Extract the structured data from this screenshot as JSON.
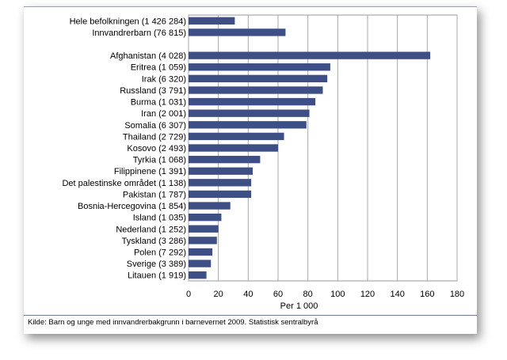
{
  "chart_data": {
    "type": "bar",
    "orientation": "horizontal",
    "categories": [
      "Hele befolkningen (1 426 284)",
      "Innvandrerbarn (76 815)",
      "",
      "Afghanistan (4 028)",
      "Eritrea (1 059)",
      "Irak (6 320)",
      "Russland (3 791)",
      "Burma (1 031)",
      "Iran (2 001)",
      "Somalia (6 307)",
      "Thailand (2 729)",
      "Kosovo (2 493)",
      "Tyrkia (1 068)",
      "Filippinene (1 391)",
      "Det palestinske området (1 138)",
      "Pakistan (1 787)",
      "Bosnia-Hercegovina (1 854)",
      "Island (1 035)",
      "Nederland (1 252)",
      "Tyskland (3 286)",
      "Polen (7 292)",
      "Sverige (3 389)",
      "Litauen (1 919)"
    ],
    "values": [
      31,
      65,
      null,
      162,
      95,
      93,
      90,
      85,
      81,
      79,
      64,
      60,
      48,
      43,
      42,
      42,
      28,
      22,
      20,
      19,
      16,
      15,
      12
    ],
    "xlabel": "Per 1 000",
    "xlim": [
      0,
      180
    ],
    "xticks": [
      0,
      20,
      40,
      60,
      80,
      100,
      120,
      140,
      160,
      180
    ],
    "grid": true,
    "bar_color": "#3d4f84"
  },
  "source": "Kilde: Barn og unge med innvandrerbakgrunn i barnevernet 2009. Statistisk sentralbyrå"
}
